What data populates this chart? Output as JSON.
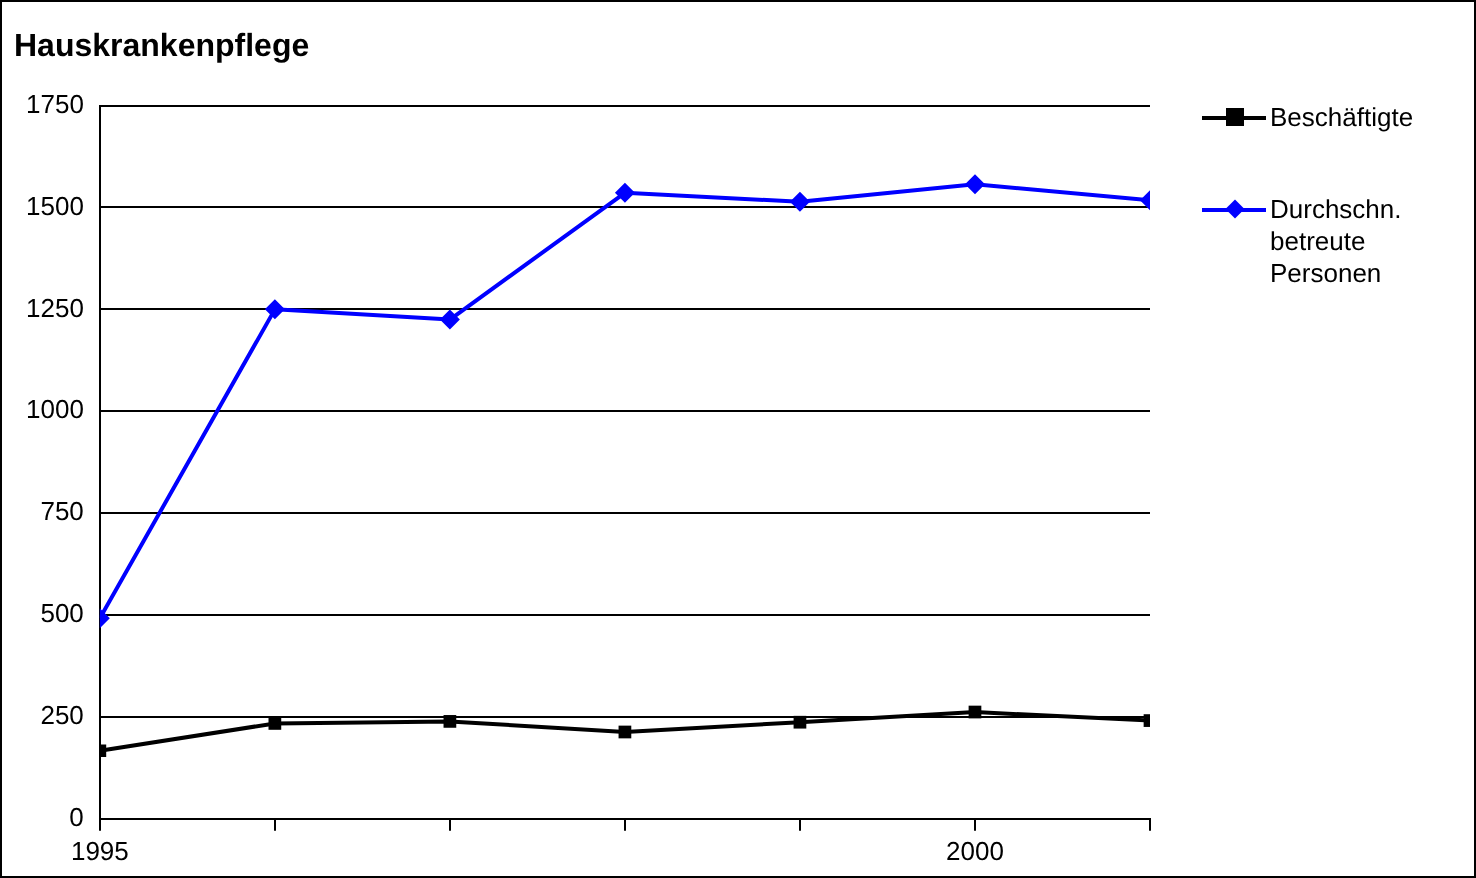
{
  "chart_data": {
    "type": "line",
    "title": "Hauskrankenpflege",
    "x": [
      1995,
      1996,
      1997,
      1998,
      1999,
      2000,
      2001
    ],
    "xlim": [
      1995,
      2001
    ],
    "xticks": [
      1995,
      {
        "value": 1996,
        "label": null
      },
      {
        "value": 1997,
        "label": null
      },
      {
        "value": 1998,
        "label": null
      },
      {
        "value": 1999,
        "label": null
      },
      2000,
      {
        "value": 2001,
        "label": null
      }
    ],
    "ylim": [
      0,
      1750
    ],
    "yticks": [
      0,
      250,
      500,
      750,
      1000,
      1250,
      1500,
      1750
    ],
    "grid": "y",
    "legend": "right",
    "series": [
      {
        "name": "Beschäftigte",
        "color": "#000000",
        "marker": "square",
        "values": [
          167,
          234,
          239,
          213,
          237,
          262,
          241
        ]
      },
      {
        "name": "Durchschn. betreute Personen",
        "color": "#0000ff",
        "marker": "diamond",
        "values": [
          492,
          1250,
          1225,
          1536,
          1514,
          1557,
          1518
        ]
      }
    ]
  }
}
